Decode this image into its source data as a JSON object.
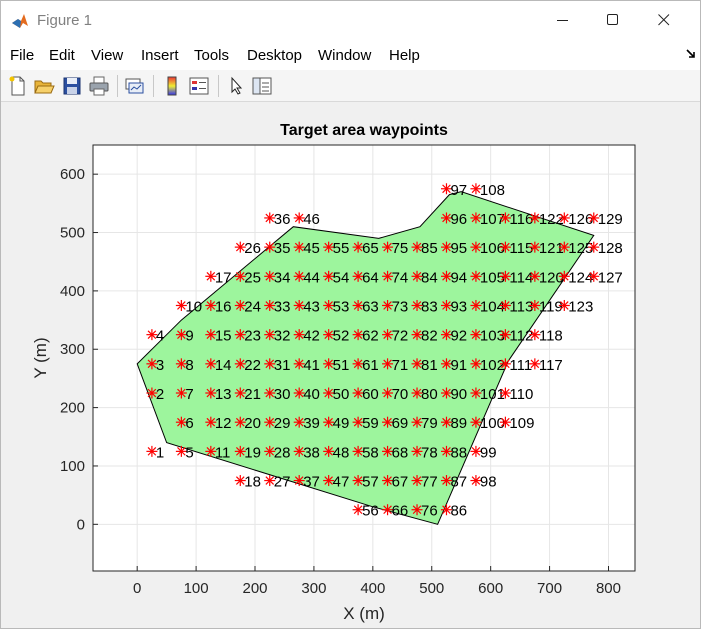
{
  "window": {
    "title": "Figure 1",
    "app_icon": "matlab-icon",
    "controls": [
      "minimize-icon",
      "maximize-icon",
      "close-icon"
    ]
  },
  "menu": {
    "items": [
      "File",
      "Edit",
      "View",
      "Insert",
      "Tools",
      "Desktop",
      "Window",
      "Help"
    ],
    "overflow_icon": "undock-arrow-icon"
  },
  "toolbar": {
    "icons": [
      "new-figure-icon",
      "open-file-icon",
      "save-icon",
      "print-icon",
      "link-plot-icon",
      "colorbar-icon",
      "legend-icon",
      "pointer-icon",
      "property-inspector-icon"
    ]
  },
  "colors": {
    "area_fill": "#9df59d",
    "area_edge": "#000000",
    "marker": "#ff0000",
    "grid": "#e6e6e6"
  },
  "chart_data": {
    "type": "scatter",
    "title": "Target area waypoints",
    "xlabel": "X (m)",
    "ylabel": "Y (m)",
    "xlim": [
      -75,
      845
    ],
    "ylim": [
      -80,
      650
    ],
    "xticks": [
      0,
      100,
      200,
      300,
      400,
      500,
      600,
      700,
      800
    ],
    "yticks": [
      0,
      100,
      200,
      300,
      400,
      500,
      600
    ],
    "grid": true,
    "marker": "*",
    "area_polygon": [
      [
        0,
        275
      ],
      [
        50,
        140
      ],
      [
        400,
        30
      ],
      [
        510,
        0
      ],
      [
        630,
        280
      ],
      [
        775,
        495
      ],
      [
        550,
        570
      ],
      [
        530,
        565
      ],
      [
        480,
        510
      ],
      [
        410,
        490
      ],
      [
        265,
        510
      ],
      [
        75,
        350
      ],
      [
        0,
        275
      ]
    ],
    "waypoints": [
      {
        "id": "1",
        "x": 25,
        "y": 125
      },
      {
        "id": "2",
        "x": 25,
        "y": 225
      },
      {
        "id": "3",
        "x": 25,
        "y": 275
      },
      {
        "id": "4",
        "x": 25,
        "y": 325
      },
      {
        "id": "5",
        "x": 75,
        "y": 125
      },
      {
        "id": "6",
        "x": 75,
        "y": 175
      },
      {
        "id": "7",
        "x": 75,
        "y": 225
      },
      {
        "id": "8",
        "x": 75,
        "y": 275
      },
      {
        "id": "9",
        "x": 75,
        "y": 325
      },
      {
        "id": "10",
        "x": 75,
        "y": 375
      },
      {
        "id": "11",
        "x": 125,
        "y": 125
      },
      {
        "id": "12",
        "x": 125,
        "y": 175
      },
      {
        "id": "13",
        "x": 125,
        "y": 225
      },
      {
        "id": "14",
        "x": 125,
        "y": 275
      },
      {
        "id": "15",
        "x": 125,
        "y": 325
      },
      {
        "id": "16",
        "x": 125,
        "y": 375
      },
      {
        "id": "17",
        "x": 125,
        "y": 425
      },
      {
        "id": "18",
        "x": 175,
        "y": 75
      },
      {
        "id": "19",
        "x": 175,
        "y": 125
      },
      {
        "id": "20",
        "x": 175,
        "y": 175
      },
      {
        "id": "21",
        "x": 175,
        "y": 225
      },
      {
        "id": "22",
        "x": 175,
        "y": 275
      },
      {
        "id": "23",
        "x": 175,
        "y": 325
      },
      {
        "id": "24",
        "x": 175,
        "y": 375
      },
      {
        "id": "25",
        "x": 175,
        "y": 425
      },
      {
        "id": "26",
        "x": 175,
        "y": 475
      },
      {
        "id": "27",
        "x": 225,
        "y": 75
      },
      {
        "id": "28",
        "x": 225,
        "y": 125
      },
      {
        "id": "29",
        "x": 225,
        "y": 175
      },
      {
        "id": "30",
        "x": 225,
        "y": 225
      },
      {
        "id": "31",
        "x": 225,
        "y": 275
      },
      {
        "id": "32",
        "x": 225,
        "y": 325
      },
      {
        "id": "33",
        "x": 225,
        "y": 375
      },
      {
        "id": "34",
        "x": 225,
        "y": 425
      },
      {
        "id": "35",
        "x": 225,
        "y": 475
      },
      {
        "id": "36",
        "x": 225,
        "y": 525
      },
      {
        "id": "37",
        "x": 275,
        "y": 75
      },
      {
        "id": "38",
        "x": 275,
        "y": 125
      },
      {
        "id": "39",
        "x": 275,
        "y": 175
      },
      {
        "id": "40",
        "x": 275,
        "y": 225
      },
      {
        "id": "41",
        "x": 275,
        "y": 275
      },
      {
        "id": "42",
        "x": 275,
        "y": 325
      },
      {
        "id": "43",
        "x": 275,
        "y": 375
      },
      {
        "id": "44",
        "x": 275,
        "y": 425
      },
      {
        "id": "45",
        "x": 275,
        "y": 475
      },
      {
        "id": "46",
        "x": 275,
        "y": 525
      },
      {
        "id": "47",
        "x": 325,
        "y": 75
      },
      {
        "id": "48",
        "x": 325,
        "y": 125
      },
      {
        "id": "49",
        "x": 325,
        "y": 175
      },
      {
        "id": "50",
        "x": 325,
        "y": 225
      },
      {
        "id": "51",
        "x": 325,
        "y": 275
      },
      {
        "id": "52",
        "x": 325,
        "y": 325
      },
      {
        "id": "53",
        "x": 325,
        "y": 375
      },
      {
        "id": "54",
        "x": 325,
        "y": 425
      },
      {
        "id": "55",
        "x": 325,
        "y": 475
      },
      {
        "id": "56",
        "x": 375,
        "y": 25
      },
      {
        "id": "57",
        "x": 375,
        "y": 75
      },
      {
        "id": "58",
        "x": 375,
        "y": 125
      },
      {
        "id": "59",
        "x": 375,
        "y": 175
      },
      {
        "id": "60",
        "x": 375,
        "y": 225
      },
      {
        "id": "61",
        "x": 375,
        "y": 275
      },
      {
        "id": "62",
        "x": 375,
        "y": 325
      },
      {
        "id": "63",
        "x": 375,
        "y": 375
      },
      {
        "id": "64",
        "x": 375,
        "y": 425
      },
      {
        "id": "65",
        "x": 375,
        "y": 475
      },
      {
        "id": "66",
        "x": 425,
        "y": 25
      },
      {
        "id": "67",
        "x": 425,
        "y": 75
      },
      {
        "id": "68",
        "x": 425,
        "y": 125
      },
      {
        "id": "69",
        "x": 425,
        "y": 175
      },
      {
        "id": "70",
        "x": 425,
        "y": 225
      },
      {
        "id": "71",
        "x": 425,
        "y": 275
      },
      {
        "id": "72",
        "x": 425,
        "y": 325
      },
      {
        "id": "73",
        "x": 425,
        "y": 375
      },
      {
        "id": "74",
        "x": 425,
        "y": 425
      },
      {
        "id": "75",
        "x": 425,
        "y": 475
      },
      {
        "id": "76",
        "x": 475,
        "y": 25
      },
      {
        "id": "77",
        "x": 475,
        "y": 75
      },
      {
        "id": "78",
        "x": 475,
        "y": 125
      },
      {
        "id": "79",
        "x": 475,
        "y": 175
      },
      {
        "id": "80",
        "x": 475,
        "y": 225
      },
      {
        "id": "81",
        "x": 475,
        "y": 275
      },
      {
        "id": "82",
        "x": 475,
        "y": 325
      },
      {
        "id": "83",
        "x": 475,
        "y": 375
      },
      {
        "id": "84",
        "x": 475,
        "y": 425
      },
      {
        "id": "85",
        "x": 475,
        "y": 475
      },
      {
        "id": "86",
        "x": 525,
        "y": 25
      },
      {
        "id": "87",
        "x": 525,
        "y": 75
      },
      {
        "id": "88",
        "x": 525,
        "y": 125
      },
      {
        "id": "89",
        "x": 525,
        "y": 175
      },
      {
        "id": "90",
        "x": 525,
        "y": 225
      },
      {
        "id": "91",
        "x": 525,
        "y": 275
      },
      {
        "id": "92",
        "x": 525,
        "y": 325
      },
      {
        "id": "93",
        "x": 525,
        "y": 375
      },
      {
        "id": "94",
        "x": 525,
        "y": 425
      },
      {
        "id": "95",
        "x": 525,
        "y": 475
      },
      {
        "id": "96",
        "x": 525,
        "y": 525
      },
      {
        "id": "97",
        "x": 525,
        "y": 575
      },
      {
        "id": "98",
        "x": 575,
        "y": 75
      },
      {
        "id": "99",
        "x": 575,
        "y": 125
      },
      {
        "id": "100",
        "x": 575,
        "y": 175
      },
      {
        "id": "101",
        "x": 575,
        "y": 225
      },
      {
        "id": "102",
        "x": 575,
        "y": 275
      },
      {
        "id": "103",
        "x": 575,
        "y": 325
      },
      {
        "id": "104",
        "x": 575,
        "y": 375
      },
      {
        "id": "105",
        "x": 575,
        "y": 425
      },
      {
        "id": "106",
        "x": 575,
        "y": 475
      },
      {
        "id": "107",
        "x": 575,
        "y": 525
      },
      {
        "id": "108",
        "x": 575,
        "y": 575
      },
      {
        "id": "109",
        "x": 625,
        "y": 175
      },
      {
        "id": "110",
        "x": 625,
        "y": 225
      },
      {
        "id": "111",
        "x": 625,
        "y": 275
      },
      {
        "id": "112",
        "x": 625,
        "y": 325
      },
      {
        "id": "113",
        "x": 625,
        "y": 375
      },
      {
        "id": "114",
        "x": 625,
        "y": 425
      },
      {
        "id": "115",
        "x": 625,
        "y": 475
      },
      {
        "id": "116",
        "x": 625,
        "y": 525
      },
      {
        "id": "117",
        "x": 675,
        "y": 275
      },
      {
        "id": "118",
        "x": 675,
        "y": 325
      },
      {
        "id": "119",
        "x": 675,
        "y": 375
      },
      {
        "id": "120",
        "x": 675,
        "y": 425
      },
      {
        "id": "121",
        "x": 675,
        "y": 475
      },
      {
        "id": "122",
        "x": 675,
        "y": 525
      },
      {
        "id": "123",
        "x": 725,
        "y": 375
      },
      {
        "id": "124",
        "x": 725,
        "y": 425
      },
      {
        "id": "125",
        "x": 725,
        "y": 475
      },
      {
        "id": "126",
        "x": 725,
        "y": 525
      },
      {
        "id": "127",
        "x": 775,
        "y": 425
      },
      {
        "id": "128",
        "x": 775,
        "y": 475
      },
      {
        "id": "129",
        "x": 775,
        "y": 525
      }
    ]
  }
}
